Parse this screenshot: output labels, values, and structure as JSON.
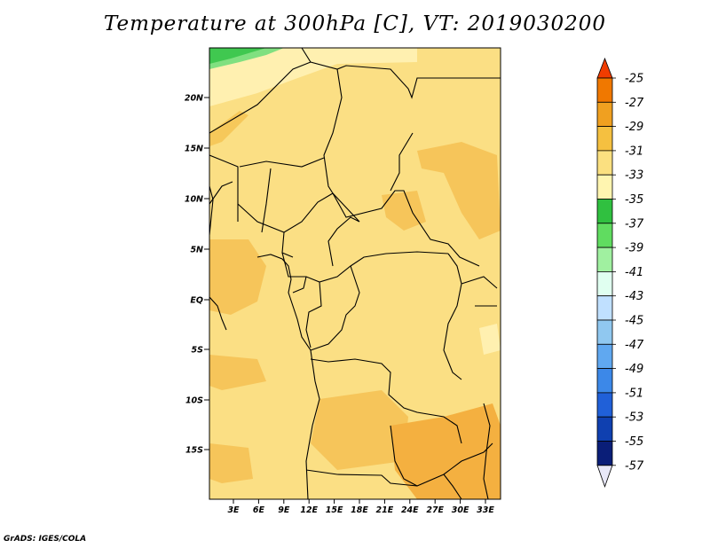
{
  "title": "Temperature at 300hPa [C], VT: 2019030200",
  "credit": "GrADS: IGES/COLA",
  "map": {
    "lat_labels": [
      "20N",
      "15N",
      "10N",
      "5N",
      "EQ",
      "5S",
      "10S",
      "15S"
    ],
    "lon_labels": [
      "3E",
      "6E",
      "9E",
      "12E",
      "15E",
      "18E",
      "21E",
      "24E",
      "27E",
      "30E",
      "33E"
    ]
  },
  "colorbar": {
    "labels": [
      "-25",
      "-27",
      "-29",
      "-31",
      "-33",
      "-35",
      "-37",
      "-39",
      "-41",
      "-43",
      "-45",
      "-47",
      "-49",
      "-51",
      "-53",
      "-55",
      "-57"
    ],
    "colors": [
      "#e03c00",
      "#f07800",
      "#f0a020",
      "#f5c040",
      "#fbe080",
      "#fff5b0",
      "#30c040",
      "#60dc60",
      "#a0f0a0",
      "#e0fff0",
      "#c0e0ff",
      "#90c8f0",
      "#60a8f0",
      "#3c88e8",
      "#2060d8",
      "#0f40b0",
      "#0a1e78",
      "#e8e8f8"
    ],
    "colors_note_top": "#f03c00"
  }
}
